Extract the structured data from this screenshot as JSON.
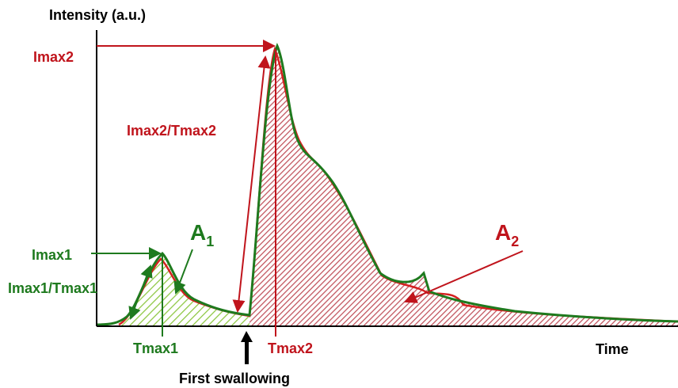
{
  "axes": {
    "y_label": "Intensity (a.u.)",
    "x_label": "Time"
  },
  "labels": {
    "imax2": "Imax2",
    "slope2": "Imax2/Tmax2",
    "imax1": "Imax1",
    "slope1": "Imax1/Tmax1",
    "tmax1": "Tmax1",
    "tmax2": "Tmax2",
    "event": "First swallowing"
  },
  "areas": {
    "a1": {
      "letter": "A",
      "subscript": "1"
    },
    "a2": {
      "letter": "A",
      "subscript": "2"
    }
  }
}
